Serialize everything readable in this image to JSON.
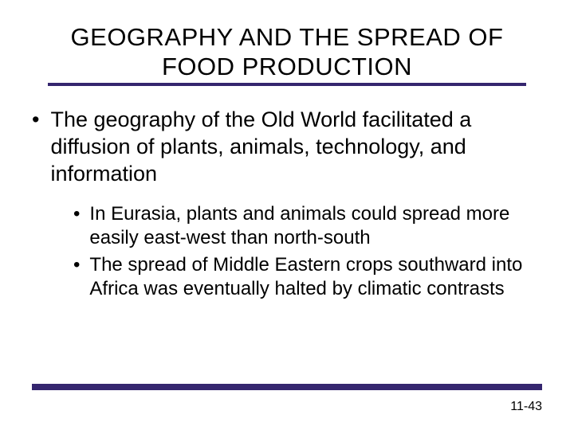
{
  "title": "GEOGRAPHY AND THE SPREAD OF FOOD PRODUCTION",
  "mainBullet": "The geography of the Old World facilitated a diffusion of plants, animals, technology, and information",
  "subBullets": [
    "In Eurasia, plants and animals could spread more easily east-west than north-south",
    "The spread of Middle Eastern crops southward into Africa was eventually halted by climatic contrasts"
  ],
  "pageNumber": "11-43",
  "colors": {
    "accent": "#35266f",
    "background": "#ffffff",
    "text": "#000000"
  },
  "fontSizes": {
    "title": 31,
    "mainBullet": 27,
    "subBullet": 24,
    "pageNumber": 16
  }
}
